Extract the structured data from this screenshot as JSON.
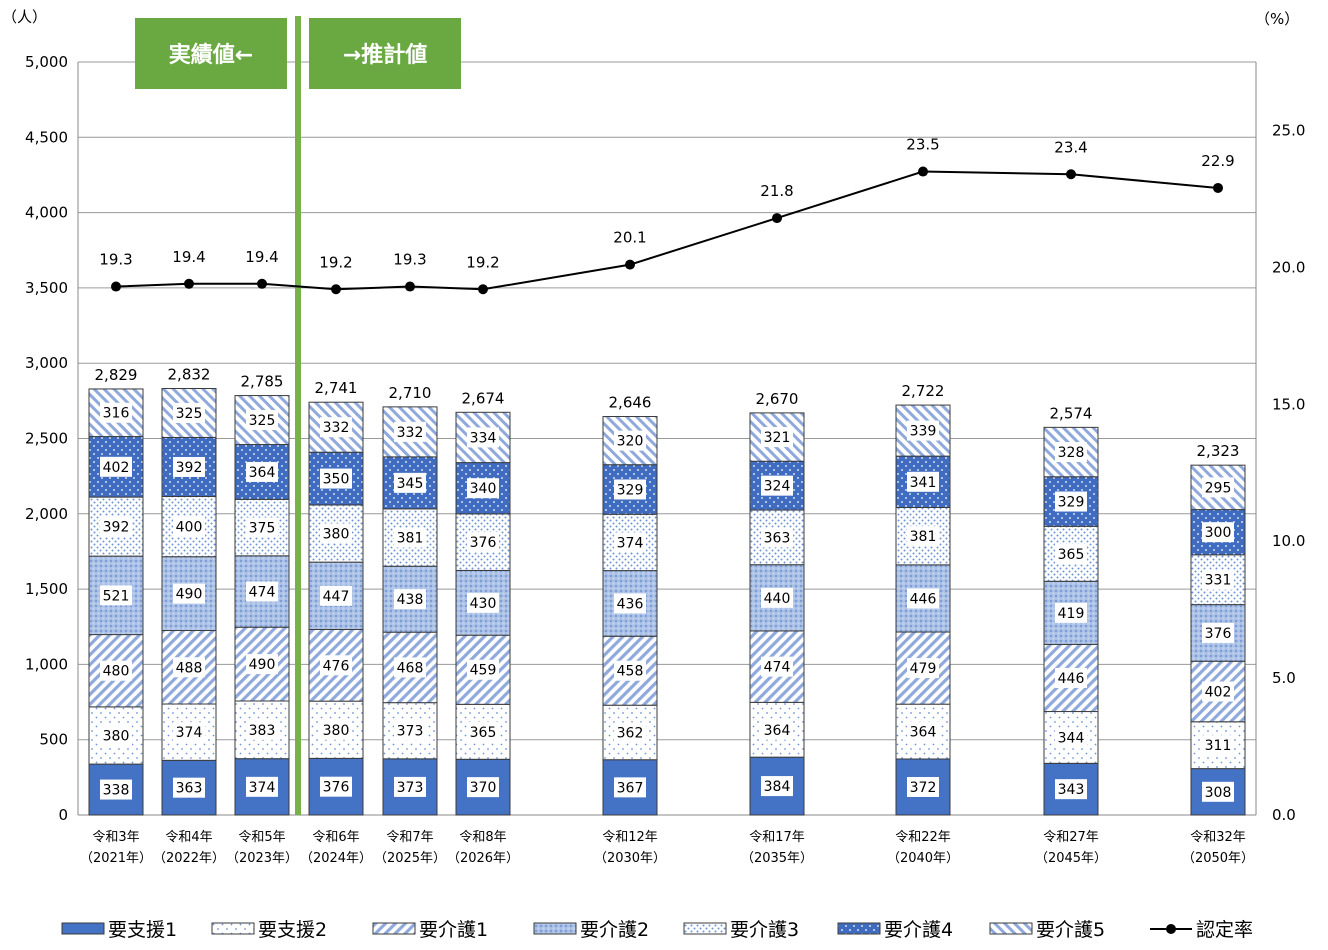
{
  "chart_data": {
    "type": "bar",
    "stacked": true,
    "unit_left": "（人）",
    "unit_right": "（%）",
    "ylim": [
      0,
      5000
    ],
    "y_ticks": [
      "0",
      "500",
      "1,000",
      "1,500",
      "2,000",
      "2,500",
      "3,000",
      "3,500",
      "4,000",
      "4,500",
      "5,000"
    ],
    "y2lim": [
      0,
      27.5
    ],
    "y2_ticks": [
      "0.0",
      "5.0",
      "10.0",
      "15.0",
      "20.0",
      "25.0"
    ],
    "banner_left": "実績値←",
    "banner_right": "→推計値",
    "categories": [
      {
        "line1": "令和3年",
        "line2": "（2021年）"
      },
      {
        "line1": "令和4年",
        "line2": "（2022年）"
      },
      {
        "line1": "令和5年",
        "line2": "（2023年）"
      },
      {
        "line1": "令和6年",
        "line2": "（2024年）"
      },
      {
        "line1": "令和7年",
        "line2": "（2025年）"
      },
      {
        "line1": "令和8年",
        "line2": "（2026年）"
      },
      {
        "line1": "令和12年",
        "line2": "（2030年）"
      },
      {
        "line1": "令和17年",
        "line2": "（2035年）"
      },
      {
        "line1": "令和22年",
        "line2": "（2040年）"
      },
      {
        "line1": "令和27年",
        "line2": "（2045年）"
      },
      {
        "line1": "令和32年",
        "line2": "（2050年）"
      }
    ],
    "series": [
      {
        "name": "要支援1",
        "values": [
          338,
          363,
          374,
          376,
          373,
          370,
          367,
          384,
          372,
          343,
          308
        ]
      },
      {
        "name": "要支援2",
        "values": [
          380,
          374,
          383,
          380,
          373,
          365,
          362,
          364,
          364,
          344,
          311
        ]
      },
      {
        "name": "要介護1",
        "values": [
          480,
          488,
          490,
          476,
          468,
          459,
          458,
          474,
          479,
          446,
          402
        ]
      },
      {
        "name": "要介護2",
        "values": [
          521,
          490,
          474,
          447,
          438,
          430,
          436,
          440,
          446,
          419,
          376
        ]
      },
      {
        "name": "要介護3",
        "values": [
          392,
          400,
          375,
          380,
          381,
          376,
          374,
          363,
          381,
          365,
          331
        ]
      },
      {
        "name": "要介護4",
        "values": [
          402,
          392,
          364,
          350,
          345,
          340,
          329,
          324,
          341,
          329,
          300
        ]
      },
      {
        "name": "要介護5",
        "values": [
          316,
          325,
          325,
          332,
          332,
          334,
          320,
          321,
          339,
          328,
          295
        ]
      }
    ],
    "totals": [
      "2,829",
      "2,832",
      "2,785",
      "2,741",
      "2,710",
      "2,674",
      "2,646",
      "2,670",
      "2,722",
      "2,574",
      "2,323"
    ],
    "line_series": {
      "name": "認定率",
      "values": [
        19.3,
        19.4,
        19.4,
        19.2,
        19.3,
        19.2,
        20.1,
        21.8,
        23.5,
        23.4,
        22.9
      ]
    },
    "legend_position": "bottom",
    "colors": {
      "dark_blue": "#4472c4",
      "light_blue": "#a9c0e6",
      "banner_green": "#6aa842",
      "divider_green": "#78b04a",
      "grid": "#9a9a9a"
    }
  }
}
